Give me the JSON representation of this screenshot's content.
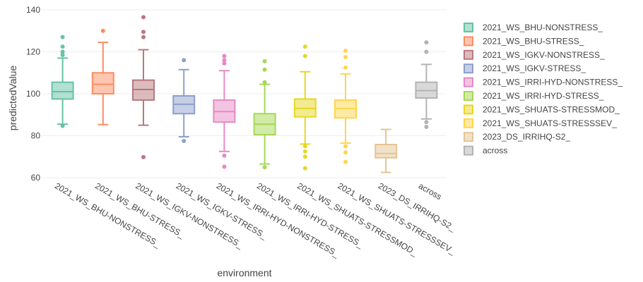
{
  "chart_data": {
    "type": "box",
    "xlabel": "environment",
    "ylabel": "predictedValue",
    "ylim": [
      60,
      140
    ],
    "yticks": [
      60,
      80,
      100,
      120,
      140
    ],
    "grid": "horizontal",
    "legend_position": "right",
    "series": [
      {
        "name": "2021_WS_BHU-NONSTRESS_",
        "color": "#66c2a5",
        "min": 85.5,
        "q1": 97.5,
        "median": 101,
        "q3": 105.5,
        "max": 117,
        "outliers": [
          127,
          122.5,
          120,
          118.5,
          84.7
        ]
      },
      {
        "name": "2021_WS_BHU-STRESS_",
        "color": "#fc8d62",
        "min": 85.3,
        "q1": 100,
        "median": 104.5,
        "q3": 110,
        "max": 124.5,
        "outliers": [
          130
        ]
      },
      {
        "name": "2021_WS_IGKV-NONSTRESS_",
        "color": "#b8787d",
        "min": 85,
        "q1": 97,
        "median": 102,
        "q3": 106.5,
        "max": 121,
        "outliers": [
          136.5,
          129.5,
          127,
          69.8
        ]
      },
      {
        "name": "2021_WS_IGKV-STRESS_",
        "color": "#8da0cb",
        "min": 79.5,
        "q1": 90.5,
        "median": 95,
        "q3": 99,
        "max": 111.5,
        "outliers": [
          116,
          77.5
        ]
      },
      {
        "name": "2021_WS_IRRI-HYD-NONSTRESS_",
        "color": "#e78ac3",
        "min": 72.5,
        "q1": 86.5,
        "median": 91.5,
        "q3": 97,
        "max": 111,
        "outliers": [
          118,
          116,
          114.5,
          70.5,
          65.2
        ]
      },
      {
        "name": "2021_WS_IRRI-HYD-STRESS_",
        "color": "#a6d854",
        "min": 66.5,
        "q1": 80.5,
        "median": 85.5,
        "q3": 90.5,
        "max": 104.5,
        "outliers": [
          115.5,
          111.5,
          105.5,
          65
        ]
      },
      {
        "name": "2021_WS_SHUATS-STRESSMOD_",
        "color": "#e5d824",
        "min": 76,
        "q1": 89,
        "median": 93,
        "q3": 97.5,
        "max": 110.5,
        "outliers": [
          122.5,
          118,
          75,
          72.5,
          70,
          64.5
        ]
      },
      {
        "name": "2021_WS_SHUATS-STRESSSEV_",
        "color": "#ffd54a",
        "min": 76.5,
        "q1": 88.5,
        "median": 93,
        "q3": 97,
        "max": 109.5,
        "outliers": [
          120.5,
          117.5,
          112.5,
          75,
          72,
          67.5
        ]
      },
      {
        "name": "2023_DS_IRRIHQ-S2_",
        "color": "#e5c494",
        "min": 62.5,
        "q1": 69.5,
        "median": 71.5,
        "q3": 75.8,
        "max": 83,
        "outliers": []
      },
      {
        "name": "across",
        "color": "#b3b3b3",
        "min": 88,
        "q1": 98,
        "median": 101.5,
        "q3": 105.5,
        "max": 114,
        "outliers": [
          124.5,
          120,
          86.5,
          84.2
        ]
      }
    ]
  }
}
